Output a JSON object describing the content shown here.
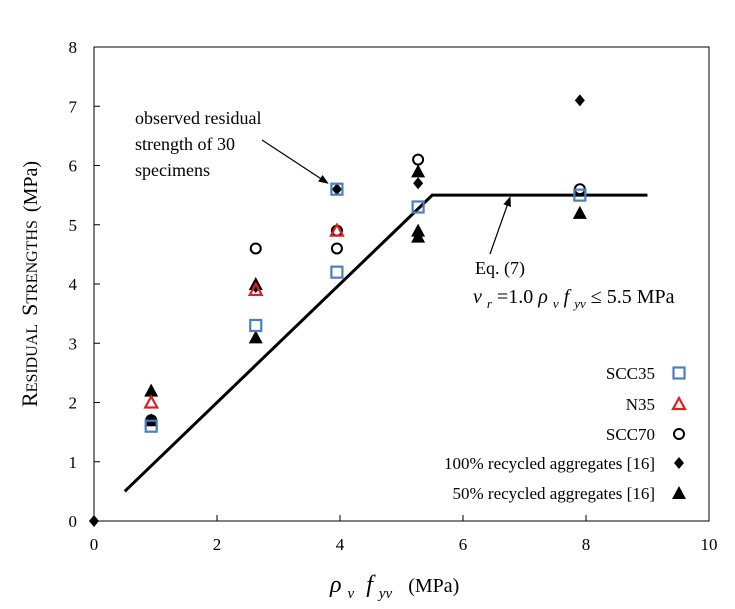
{
  "chart_data": {
    "type": "scatter",
    "title": "",
    "xlabel": {
      "rho": "ρ",
      "rho_sub": "v",
      "f": "f",
      "f_sub": "yv",
      "unit": "(MPa)"
    },
    "ylabel": {
      "first_cap": "R",
      "first_rest": "ESIDUAL",
      "second_cap": "S",
      "second_rest": "TRENGTHS",
      "unit": "(MPa)"
    },
    "xlim": [
      0,
      10
    ],
    "ylim": [
      0,
      8
    ],
    "x_ticks": [
      0,
      2,
      4,
      6,
      8,
      10
    ],
    "y_ticks": [
      0,
      1,
      2,
      3,
      4,
      5,
      6,
      7,
      8
    ],
    "grid": false,
    "legend_position": "bottom-right",
    "series": [
      {
        "name": "SCC35",
        "marker": "square-open",
        "color": "#4a7fc1",
        "points": [
          [
            0.93,
            1.6
          ],
          [
            2.63,
            3.3
          ],
          [
            3.95,
            4.2
          ],
          [
            3.95,
            5.6
          ],
          [
            5.27,
            5.3
          ],
          [
            7.9,
            5.5
          ]
        ]
      },
      {
        "name": "N35",
        "marker": "triangle-open",
        "color": "#e02020",
        "points": [
          [
            0.93,
            2.0
          ],
          [
            2.63,
            3.9
          ],
          [
            3.95,
            4.9
          ]
        ]
      },
      {
        "name": "SCC70",
        "marker": "circle-open",
        "color": "#000000",
        "points": [
          [
            0.93,
            1.7
          ],
          [
            2.63,
            4.6
          ],
          [
            3.95,
            4.6
          ],
          [
            3.95,
            4.9
          ],
          [
            5.27,
            6.1
          ],
          [
            7.9,
            5.6
          ]
        ]
      },
      {
        "name": "100% recycled aggregates [16]",
        "marker": "diamond-filled",
        "color": "#000000",
        "points": [
          [
            0.93,
            1.7
          ],
          [
            2.63,
            3.95
          ],
          [
            3.95,
            5.6
          ],
          [
            5.27,
            5.7
          ],
          [
            5.27,
            4.85
          ],
          [
            7.9,
            7.1
          ],
          [
            0.0,
            0.0
          ]
        ]
      },
      {
        "name": "50% recycled aggregates [16]",
        "marker": "triangle-filled",
        "color": "#000000",
        "points": [
          [
            0.93,
            2.2
          ],
          [
            0.93,
            1.7
          ],
          [
            2.63,
            4.0
          ],
          [
            2.63,
            3.1
          ],
          [
            5.27,
            5.9
          ],
          [
            5.27,
            4.9
          ],
          [
            5.27,
            4.8
          ],
          [
            7.9,
            5.2
          ]
        ]
      }
    ],
    "model_line": {
      "name": "Eq. (7)",
      "color": "#000000",
      "points": [
        [
          0.5,
          0.5
        ],
        [
          5.5,
          5.5
        ],
        [
          9.0,
          5.5
        ]
      ]
    },
    "annotations": {
      "observed": {
        "lines": [
          "observed residual",
          "strength of 30",
          "specimens"
        ],
        "target": [
          3.9,
          5.6
        ]
      },
      "equation": {
        "label": "Eq. (7)",
        "v": "v",
        "v_sub": "r",
        "eq_part": " =1.0",
        "rho": "ρ",
        "rho_sub": "v",
        "f": "f",
        "f_sub": "yv",
        "limit": " ≤ 5.5 MPa",
        "target": [
          6.75,
          5.55
        ]
      }
    }
  }
}
